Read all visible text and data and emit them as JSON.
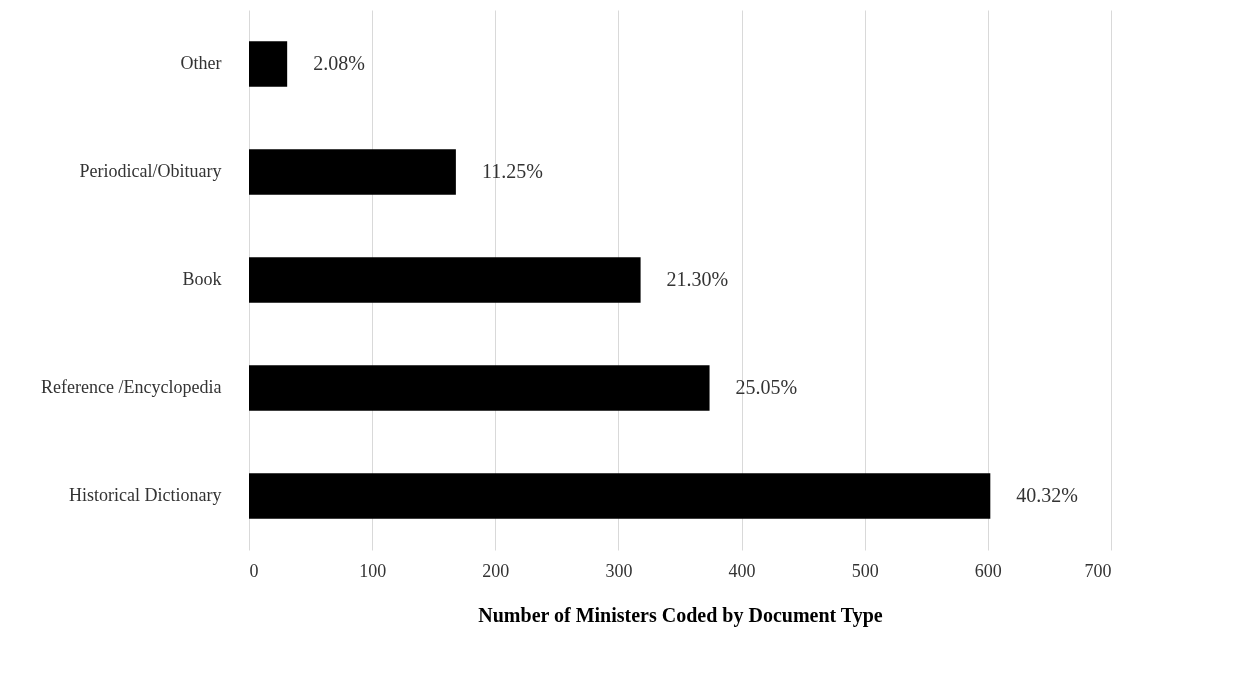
{
  "chart_data": {
    "type": "bar",
    "orientation": "horizontal",
    "xlabel": "Number of Ministers Coded by Document Type",
    "categories": [
      "Other",
      "Periodical/Obituary",
      "Book",
      "Reference /Encyclopedia",
      "Historical Dictionary"
    ],
    "values": [
      31,
      168,
      318,
      374,
      602
    ],
    "annotations": [
      {
        "text": "2.08%",
        "x": 31,
        "y": "Other"
      },
      {
        "text": "11.25%",
        "x": 168,
        "y": "Periodical/Obituary"
      },
      {
        "text": "21.30%",
        "x": 318,
        "y": "Book"
      },
      {
        "text": "25.05%",
        "x": 374,
        "y": "Reference /Encyclopedia"
      },
      {
        "text": "40.32%",
        "x": 602,
        "y": "Historical Dictionary"
      }
    ],
    "color": "#000000",
    "xlim": [
      0,
      700
    ],
    "xticks": [
      0,
      100,
      200,
      300,
      400,
      500,
      600,
      700
    ],
    "grid": "x"
  }
}
